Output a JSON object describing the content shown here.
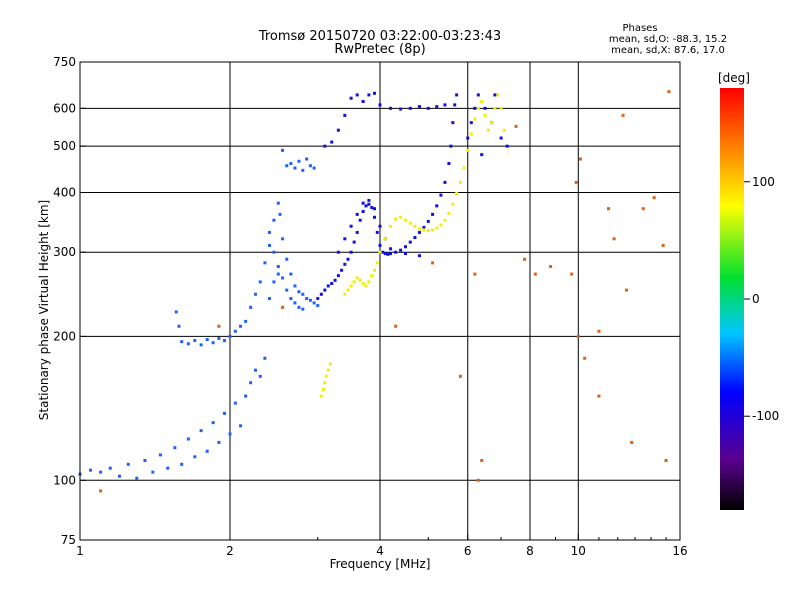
{
  "chart_data": {
    "type": "scatter",
    "title": "Tromsø 20150720 03:22:00-03:23:43",
    "subtitle": "RwPretec (8p)",
    "xlabel": "Frequency [MHz]",
    "ylabel": "Stationary phase Virtual Height [km]",
    "x_scale": "log",
    "y_scale": "log",
    "xlim": [
      1,
      16
    ],
    "ylim": [
      75,
      750
    ],
    "x_ticks": [
      1,
      2,
      4,
      6,
      8,
      10,
      16
    ],
    "x_tick_labels": [
      "1",
      "2",
      "4",
      "6",
      "8",
      "10",
      "16"
    ],
    "y_ticks": [
      75,
      100,
      200,
      300,
      400,
      500,
      600,
      750
    ],
    "y_tick_labels": [
      "75",
      "100",
      "200",
      "300",
      "400",
      "500",
      "600",
      "750"
    ],
    "x_grid": [
      2,
      4,
      6,
      8,
      10
    ],
    "y_grid": [
      100,
      200,
      300,
      400,
      500,
      600
    ],
    "grid": true,
    "stats": {
      "heading": "Phases",
      "line_o": "mean, sd,O: -88.3, 15.2",
      "line_x": "mean, sd,X:  87.6, 17.0"
    },
    "colorbar": {
      "label": "[deg]",
      "range": [
        -180,
        180
      ],
      "ticks": [
        100,
        0,
        -100
      ],
      "tick_labels": [
        "100",
        "0",
        "-100"
      ]
    },
    "series": [
      {
        "mode": "O",
        "phase_deg": -100,
        "color": "#1e60ff",
        "description_points": [
          [
            1.0,
            103
          ],
          [
            1.05,
            105
          ],
          [
            1.1,
            104
          ],
          [
            1.15,
            106
          ],
          [
            1.2,
            102
          ],
          [
            1.25,
            108
          ],
          [
            1.3,
            101
          ],
          [
            1.35,
            110
          ],
          [
            1.4,
            104
          ],
          [
            1.45,
            113
          ],
          [
            1.5,
            106
          ],
          [
            1.55,
            117
          ],
          [
            1.6,
            108
          ],
          [
            1.65,
            122
          ],
          [
            1.7,
            112
          ],
          [
            1.75,
            127
          ],
          [
            1.8,
            115
          ],
          [
            1.85,
            132
          ],
          [
            1.9,
            120
          ],
          [
            1.95,
            138
          ],
          [
            2.0,
            125
          ],
          [
            2.05,
            145
          ],
          [
            2.1,
            130
          ],
          [
            2.15,
            150
          ],
          [
            2.2,
            160
          ],
          [
            2.25,
            170
          ],
          [
            2.3,
            165
          ],
          [
            2.35,
            180
          ],
          [
            1.6,
            195
          ],
          [
            1.65,
            193
          ],
          [
            1.7,
            196
          ],
          [
            1.75,
            192
          ],
          [
            1.8,
            197
          ],
          [
            1.85,
            194
          ],
          [
            1.9,
            198
          ],
          [
            1.95,
            196
          ],
          [
            2.0,
            200
          ],
          [
            2.05,
            205
          ],
          [
            2.1,
            210
          ],
          [
            2.15,
            215
          ],
          [
            1.58,
            210
          ],
          [
            1.56,
            225
          ],
          [
            2.2,
            230
          ],
          [
            2.25,
            245
          ],
          [
            2.3,
            260
          ],
          [
            2.35,
            285
          ],
          [
            2.4,
            310
          ],
          [
            2.45,
            350
          ],
          [
            2.5,
            380
          ],
          [
            2.52,
            360
          ],
          [
            2.55,
            320
          ],
          [
            2.6,
            290
          ],
          [
            2.65,
            270
          ],
          [
            2.7,
            255
          ],
          [
            2.75,
            248
          ],
          [
            2.8,
            245
          ],
          [
            2.85,
            240
          ],
          [
            2.9,
            238
          ],
          [
            2.95,
            235
          ],
          [
            3.0,
            232
          ],
          [
            2.4,
            240
          ],
          [
            2.45,
            260
          ],
          [
            2.5,
            280
          ],
          [
            2.55,
            265
          ],
          [
            2.6,
            250
          ],
          [
            2.65,
            240
          ],
          [
            2.7,
            235
          ],
          [
            2.75,
            230
          ],
          [
            2.8,
            228
          ],
          [
            2.4,
            330
          ],
          [
            2.45,
            300
          ],
          [
            2.5,
            270
          ],
          [
            2.6,
            455
          ],
          [
            2.65,
            460
          ],
          [
            2.7,
            450
          ],
          [
            2.75,
            465
          ],
          [
            2.8,
            445
          ],
          [
            2.85,
            470
          ],
          [
            2.9,
            455
          ],
          [
            2.55,
            490
          ],
          [
            2.95,
            450
          ]
        ]
      },
      {
        "mode": "O",
        "phase_deg": -120,
        "color": "#1010e0",
        "description_points": [
          [
            3.0,
            240
          ],
          [
            3.05,
            245
          ],
          [
            3.1,
            250
          ],
          [
            3.15,
            255
          ],
          [
            3.2,
            258
          ],
          [
            3.25,
            262
          ],
          [
            3.3,
            268
          ],
          [
            3.35,
            275
          ],
          [
            3.4,
            283
          ],
          [
            3.45,
            290
          ],
          [
            3.5,
            300
          ],
          [
            3.55,
            315
          ],
          [
            3.6,
            330
          ],
          [
            3.65,
            350
          ],
          [
            3.7,
            365
          ],
          [
            3.75,
            375
          ],
          [
            3.8,
            378
          ],
          [
            3.85,
            372
          ],
          [
            3.9,
            355
          ],
          [
            3.95,
            330
          ],
          [
            4.0,
            310
          ],
          [
            4.05,
            300
          ],
          [
            4.1,
            298
          ],
          [
            4.15,
            297
          ],
          [
            4.2,
            298
          ],
          [
            4.3,
            300
          ],
          [
            4.4,
            303
          ],
          [
            4.5,
            308
          ],
          [
            4.6,
            315
          ],
          [
            4.7,
            322
          ],
          [
            4.8,
            330
          ],
          [
            4.9,
            338
          ],
          [
            5.0,
            348
          ],
          [
            5.1,
            360
          ],
          [
            5.2,
            375
          ],
          [
            5.3,
            395
          ],
          [
            5.4,
            420
          ],
          [
            5.5,
            460
          ],
          [
            5.55,
            500
          ],
          [
            5.6,
            560
          ],
          [
            5.65,
            610
          ],
          [
            5.7,
            640
          ],
          [
            3.3,
            300
          ],
          [
            3.4,
            320
          ],
          [
            3.5,
            340
          ],
          [
            3.6,
            360
          ],
          [
            3.7,
            380
          ],
          [
            3.8,
            385
          ],
          [
            3.9,
            370
          ],
          [
            4.0,
            340
          ],
          [
            4.1,
            320
          ],
          [
            4.2,
            305
          ],
          [
            4.5,
            298
          ],
          [
            4.8,
            295
          ],
          [
            3.1,
            500
          ],
          [
            3.2,
            510
          ],
          [
            3.3,
            540
          ],
          [
            3.4,
            580
          ],
          [
            3.5,
            630
          ],
          [
            3.6,
            640
          ],
          [
            3.7,
            620
          ],
          [
            3.8,
            640
          ],
          [
            3.9,
            645
          ],
          [
            4.0,
            610
          ],
          [
            4.2,
            600
          ],
          [
            4.4,
            598
          ],
          [
            4.6,
            600
          ],
          [
            4.8,
            605
          ],
          [
            5.0,
            600
          ],
          [
            5.2,
            605
          ],
          [
            5.4,
            610
          ],
          [
            6.0,
            520
          ],
          [
            6.1,
            560
          ],
          [
            6.2,
            600
          ],
          [
            6.3,
            640
          ],
          [
            6.5,
            600
          ],
          [
            6.7,
            560
          ],
          [
            7.0,
            520
          ],
          [
            7.2,
            500
          ],
          [
            6.4,
            480
          ],
          [
            6.8,
            640
          ]
        ]
      },
      {
        "mode": "X",
        "phase_deg": 95,
        "color": "#f0f000",
        "description_points": [
          [
            3.05,
            150
          ],
          [
            3.08,
            155
          ],
          [
            3.1,
            160
          ],
          [
            3.12,
            165
          ],
          [
            3.15,
            170
          ],
          [
            3.18,
            175
          ],
          [
            3.4,
            245
          ],
          [
            3.45,
            250
          ],
          [
            3.5,
            255
          ],
          [
            3.55,
            260
          ],
          [
            3.6,
            265
          ],
          [
            3.65,
            262
          ],
          [
            3.7,
            258
          ],
          [
            3.75,
            255
          ],
          [
            3.8,
            260
          ],
          [
            3.85,
            268
          ],
          [
            3.9,
            275
          ],
          [
            3.95,
            285
          ],
          [
            4.0,
            300
          ],
          [
            4.1,
            320
          ],
          [
            4.2,
            340
          ],
          [
            4.3,
            352
          ],
          [
            4.4,
            355
          ],
          [
            4.5,
            350
          ],
          [
            4.6,
            345
          ],
          [
            4.7,
            340
          ],
          [
            4.8,
            336
          ],
          [
            4.9,
            334
          ],
          [
            5.0,
            333
          ],
          [
            5.1,
            334
          ],
          [
            5.2,
            337
          ],
          [
            5.3,
            342
          ],
          [
            5.4,
            350
          ],
          [
            5.5,
            362
          ],
          [
            5.6,
            378
          ],
          [
            5.7,
            398
          ],
          [
            5.8,
            420
          ],
          [
            5.9,
            450
          ],
          [
            6.0,
            490
          ],
          [
            6.1,
            530
          ],
          [
            6.2,
            570
          ],
          [
            6.3,
            600
          ],
          [
            6.4,
            620
          ],
          [
            6.5,
            580
          ],
          [
            6.6,
            540
          ],
          [
            6.7,
            560
          ],
          [
            6.8,
            600
          ],
          [
            6.9,
            640
          ],
          [
            7.0,
            600
          ],
          [
            7.1,
            540
          ]
        ]
      },
      {
        "mode": "scattered",
        "phase_deg": 0,
        "color": "#e06010",
        "description_points": [
          [
            1.1,
            95
          ],
          [
            1.9,
            210
          ],
          [
            2.55,
            230
          ],
          [
            4.3,
            210
          ],
          [
            5.1,
            285
          ],
          [
            5.8,
            165
          ],
          [
            6.2,
            270
          ],
          [
            6.4,
            110
          ],
          [
            7.5,
            550
          ],
          [
            8.2,
            270
          ],
          [
            8.8,
            280
          ],
          [
            9.7,
            270
          ],
          [
            10.0,
            200
          ],
          [
            10.3,
            180
          ],
          [
            11.0,
            205
          ],
          [
            11.5,
            370
          ],
          [
            11.8,
            320
          ],
          [
            12.3,
            580
          ],
          [
            12.5,
            250
          ],
          [
            12.8,
            120
          ],
          [
            13.5,
            370
          ],
          [
            14.2,
            390
          ],
          [
            14.8,
            310
          ],
          [
            15.2,
            650
          ],
          [
            15.0,
            110
          ],
          [
            9.9,
            420
          ],
          [
            10.1,
            470
          ],
          [
            11.0,
            150
          ],
          [
            6.3,
            100
          ],
          [
            7.8,
            290
          ]
        ]
      }
    ]
  }
}
